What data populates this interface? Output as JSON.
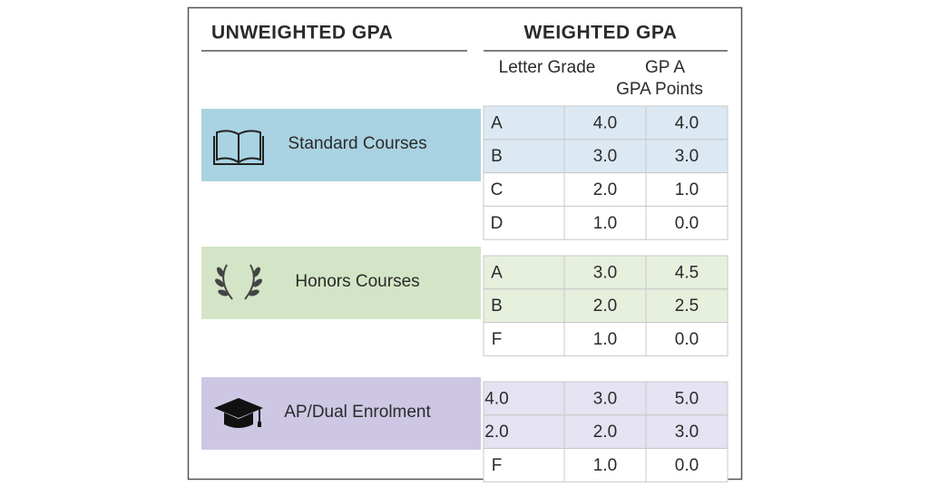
{
  "header": {
    "unweighted": "UNWEIGHTED GPA",
    "weighted": "WEIGHTED GPA",
    "columns": [
      "Letter Grade",
      [
        "GP A",
        "GPA Points"
      ]
    ]
  },
  "groups": [
    {
      "label": "Standard Courses",
      "rows": [
        [
          "A",
          "4.0",
          "4.0"
        ],
        [
          "B",
          "3.0",
          "3.0"
        ],
        [
          "C",
          "2.0",
          "1.0"
        ],
        [
          "D",
          "1.0",
          "0.0"
        ]
      ]
    },
    {
      "label": "Honors Courses",
      "rows": [
        [
          "A",
          "3.0",
          "4.5"
        ],
        [
          "B",
          "2.0",
          "2.5"
        ],
        [
          "F",
          "1.0",
          "0.0"
        ]
      ]
    },
    {
      "label": "AP/Dual Enrolment",
      "rows": [
        [
          "4.0",
          "3.0",
          "5.0"
        ],
        [
          "2.0",
          "2.0",
          "3.0"
        ],
        [
          "F",
          "1.0",
          "0.0"
        ]
      ]
    }
  ]
}
